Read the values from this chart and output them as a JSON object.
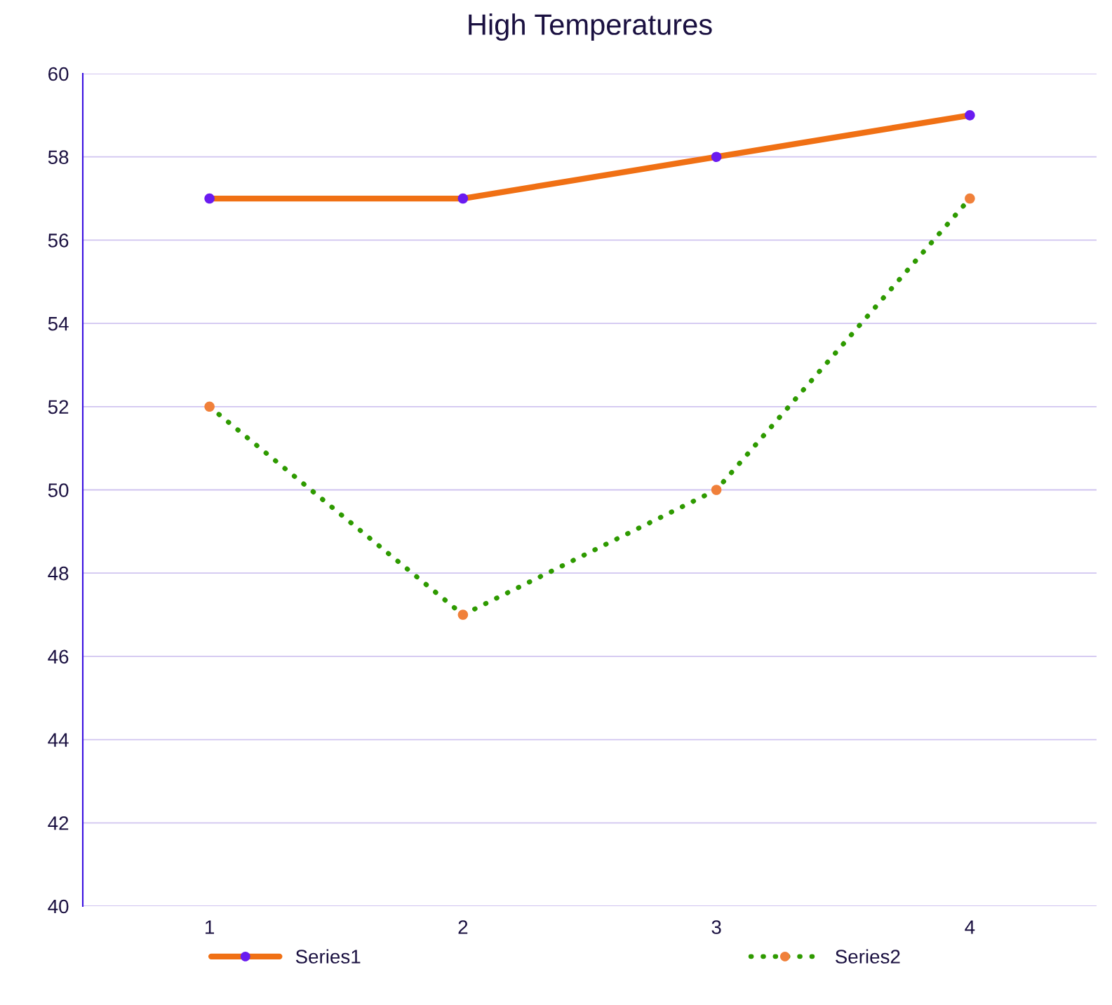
{
  "chart_data": {
    "type": "line",
    "title": "High Temperatures",
    "categories": [
      "1",
      "2",
      "3",
      "4"
    ],
    "series": [
      {
        "name": "Series1",
        "color": "#f07014",
        "colors": [
          "#6a1bf0",
          "#6a1bf0",
          "#6a1bf0",
          "#6a1bf0"
        ],
        "line_style": "solid",
        "values": [
          57,
          57,
          58,
          59
        ]
      },
      {
        "name": "Series2",
        "color": "#2e9a00",
        "colors": [
          "#f0803a",
          "#f0803a",
          "#f0803a",
          "#f0803a"
        ],
        "line_style": "dotted",
        "values": [
          52,
          47,
          50,
          57
        ]
      }
    ],
    "ylim": [
      40,
      60
    ],
    "yticks": [
      40,
      42,
      44,
      46,
      48,
      50,
      52,
      54,
      56,
      58,
      60
    ],
    "grid": "y",
    "legend": "bottom",
    "marker": "circle"
  }
}
